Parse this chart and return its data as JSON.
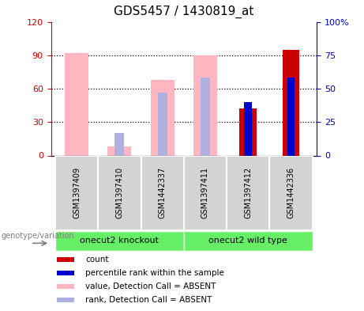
{
  "title": "GDS5457 / 1430819_at",
  "samples": [
    "GSM1397409",
    "GSM1397410",
    "GSM1442337",
    "GSM1397411",
    "GSM1397412",
    "GSM1442336"
  ],
  "pink_values": [
    92.0,
    8.0,
    68.0,
    90.0,
    null,
    null
  ],
  "lavender_values": [
    null,
    17.0,
    47.0,
    58.0,
    null,
    null
  ],
  "red_values": [
    null,
    null,
    null,
    null,
    42.0,
    95.0
  ],
  "blue_values": [
    null,
    null,
    null,
    null,
    40.0,
    58.0
  ],
  "ylim_left": [
    0,
    120
  ],
  "ylim_right": [
    0,
    100
  ],
  "yticks_left": [
    0,
    30,
    60,
    90,
    120
  ],
  "ytick_labels_left": [
    "0",
    "30",
    "60",
    "90",
    "120"
  ],
  "yticks_right": [
    0,
    25,
    50,
    75,
    100
  ],
  "ytick_labels_right": [
    "0",
    "25",
    "50",
    "75",
    "100%"
  ],
  "left_color": "#cc0000",
  "right_color": "#0000cc",
  "pink_color": "#ffb6c1",
  "lavender_color": "#b0b0e0",
  "red_color": "#cc0000",
  "blue_color": "#0000cc",
  "bg_color": "#d3d3d3",
  "green_color": "#66ee66",
  "group1_label": "onecut2 knockout",
  "group2_label": "onecut2 wild type",
  "xlabel_label": "genotype/variation",
  "legend_items": [
    {
      "label": "count",
      "color": "#cc0000"
    },
    {
      "label": "percentile rank within the sample",
      "color": "#0000cc"
    },
    {
      "label": "value, Detection Call = ABSENT",
      "color": "#ffb6c1"
    },
    {
      "label": "rank, Detection Call = ABSENT",
      "color": "#b0b0e0"
    }
  ]
}
